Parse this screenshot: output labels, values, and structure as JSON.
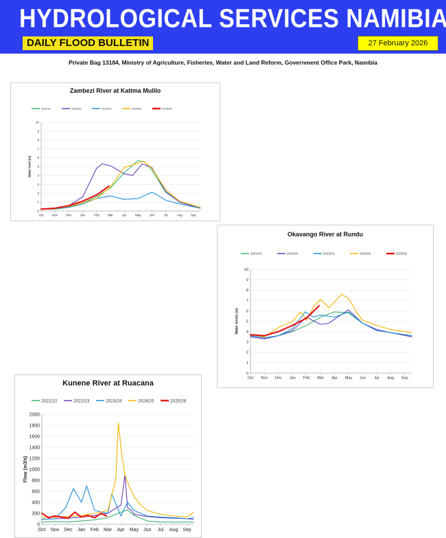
{
  "header": {
    "title": "HYDROLOGICAL SERVICES NAMIBIA",
    "subtitle": "DAILY FLOOD BULLETIN",
    "date": "27 February 2026",
    "address": "Private Bag 13184, Ministry of Agriculture, Fisheries, Water and Land Reform, Government Office Park, Namibia",
    "colors": {
      "banner": "#2c3ef0",
      "subtitle_bg": "#f6e21a",
      "date_bg": "#ffff00"
    }
  },
  "chart_data": [
    {
      "type": "line",
      "title": "Zambezi River at Katima Mulilo",
      "ylabel": "Water level (m)",
      "xlabel": "",
      "ylim": [
        0,
        10
      ],
      "yticks": [
        0,
        1,
        2,
        3,
        4,
        5,
        6,
        7,
        8,
        9,
        10
      ],
      "x_categories": [
        "Oct",
        "Nov",
        "Dec",
        "Jan",
        "Feb",
        "Mar",
        "Apr",
        "May",
        "Jun",
        "Jul",
        "Aug",
        "Sep"
      ],
      "grid": true,
      "legend_position": "top",
      "series": [
        {
          "name": "2021/22",
          "color": "#3cb371",
          "width": 1,
          "x": [
            0,
            1,
            2,
            3,
            4,
            5,
            6,
            7,
            7.5,
            8,
            9,
            10,
            11.5
          ],
          "y": [
            0.2,
            0.2,
            0.4,
            0.9,
            1.6,
            2.6,
            4.3,
            5.7,
            5.5,
            4.6,
            2.1,
            1.0,
            0.3
          ]
        },
        {
          "name": "2022/23",
          "color": "#6a3fb5",
          "width": 1,
          "x": [
            0,
            1,
            2,
            3,
            4,
            4.4,
            5,
            6,
            6.6,
            7.3,
            8,
            9,
            10,
            11.5
          ],
          "y": [
            0.2,
            0.3,
            0.6,
            1.6,
            4.8,
            5.3,
            5.1,
            4.2,
            4.0,
            5.3,
            4.9,
            2.2,
            1.0,
            0.3
          ]
        },
        {
          "name": "2023/24",
          "color": "#1f8dd6",
          "width": 1,
          "x": [
            0,
            1,
            2,
            3,
            4,
            5,
            6,
            7,
            8,
            8.4,
            9,
            10,
            11.5
          ],
          "y": [
            0.2,
            0.3,
            0.4,
            0.8,
            1.4,
            1.7,
            1.3,
            1.4,
            2.1,
            1.8,
            1.2,
            0.8,
            0.3
          ]
        },
        {
          "name": "2024/25",
          "color": "#f0b400",
          "width": 1,
          "x": [
            0,
            1,
            2,
            3,
            4,
            5,
            6,
            7,
            7.4,
            8,
            9,
            10,
            11.5
          ],
          "y": [
            0.2,
            0.3,
            0.5,
            0.9,
            1.4,
            2.7,
            4.9,
            5.4,
            5.6,
            4.8,
            2.4,
            1.1,
            0.4
          ]
        },
        {
          "name": "2025/26",
          "color": "#e41a1c",
          "width": 2,
          "x": [
            0,
            1,
            2,
            3,
            4,
            4.9
          ],
          "y": [
            0.2,
            0.3,
            0.6,
            1.1,
            1.8,
            2.8
          ]
        }
      ]
    },
    {
      "type": "line",
      "title": "Okavango River at Rundu",
      "ylabel": "Water levels (m)",
      "xlabel": "",
      "ylim": [
        0,
        10
      ],
      "yticks": [
        0,
        1,
        2,
        3,
        4,
        5,
        6,
        7,
        8,
        9,
        10
      ],
      "x_categories": [
        "Oct",
        "Nov",
        "Dec",
        "Jan",
        "Feb",
        "Mar",
        "Apr",
        "May",
        "Jun",
        "Jul",
        "Aug",
        "Sep"
      ],
      "grid": true,
      "legend_position": "top",
      "series": [
        {
          "name": "2021/22",
          "color": "#3cb371",
          "width": 1,
          "x": [
            0,
            1,
            2,
            3,
            4,
            5,
            6,
            7,
            8,
            9,
            10,
            11.5
          ],
          "y": [
            3.6,
            3.4,
            3.6,
            4.0,
            4.6,
            5.4,
            5.9,
            5.8,
            4.8,
            4.2,
            3.9,
            3.6
          ]
        },
        {
          "name": "2022/23",
          "color": "#6a3fb5",
          "width": 1,
          "x": [
            0,
            1,
            2,
            3,
            4,
            4.4,
            5,
            5.6,
            6,
            7,
            8,
            9,
            10,
            11.5
          ],
          "y": [
            3.5,
            3.3,
            3.6,
            4.1,
            5.4,
            5.1,
            4.7,
            4.8,
            5.2,
            6.1,
            4.8,
            4.2,
            3.9,
            3.5
          ]
        },
        {
          "name": "2023/24",
          "color": "#1f8dd6",
          "width": 1,
          "x": [
            0,
            1,
            2,
            3,
            3.9,
            4.5,
            5,
            6,
            7,
            8,
            9,
            10,
            11.5
          ],
          "y": [
            3.6,
            3.4,
            3.6,
            4.3,
            5.9,
            5.4,
            5.6,
            5.4,
            5.9,
            4.8,
            4.1,
            3.9,
            3.6
          ]
        },
        {
          "name": "2024/25",
          "color": "#f0b400",
          "width": 1,
          "x": [
            0,
            1,
            2,
            3,
            3.6,
            4,
            4.6,
            5,
            5.6,
            6.5,
            7,
            7.6,
            8,
            9,
            10,
            11.5
          ],
          "y": [
            3.7,
            3.5,
            4.4,
            5.0,
            5.9,
            5.1,
            6.6,
            7.1,
            6.3,
            7.6,
            7.2,
            5.8,
            5.1,
            4.6,
            4.2,
            3.9
          ]
        },
        {
          "name": "2025/26",
          "color": "#e41a1c",
          "width": 2,
          "x": [
            0,
            1,
            2,
            3,
            4,
            4.9
          ],
          "y": [
            3.7,
            3.6,
            4.0,
            4.6,
            5.3,
            6.5
          ]
        }
      ]
    },
    {
      "type": "line",
      "title": "Kunene River at Ruacana",
      "ylabel": "Flow (m3/s)",
      "xlabel": "",
      "ylim": [
        0,
        2000
      ],
      "yticks": [
        0,
        200,
        400,
        600,
        800,
        1000,
        1200,
        1400,
        1600,
        1800,
        2000
      ],
      "x_categories": [
        "Oct",
        "Nov",
        "Dec",
        "Jan",
        "Feb",
        "Mar",
        "Apr",
        "May",
        "Jun",
        "Jul",
        "Aug",
        "Sep"
      ],
      "grid": true,
      "legend_position": "top",
      "series": [
        {
          "name": "2021/22",
          "color": "#3cb371",
          "width": 1,
          "x": [
            0,
            1,
            2,
            3,
            4,
            5,
            6,
            6.5,
            7,
            8,
            9,
            10,
            11,
            11.5
          ],
          "y": [
            40,
            50,
            40,
            60,
            80,
            120,
            220,
            260,
            160,
            60,
            40,
            40,
            40,
            40
          ]
        },
        {
          "name": "2022/23",
          "color": "#6a3fb5",
          "width": 1,
          "x": [
            0,
            1,
            2,
            3,
            4,
            5,
            6,
            6.3,
            6.5,
            6.8,
            7,
            8,
            9,
            10,
            11,
            11.5
          ],
          "y": [
            90,
            100,
            110,
            130,
            160,
            200,
            350,
            900,
            300,
            250,
            180,
            140,
            120,
            110,
            100,
            90
          ]
        },
        {
          "name": "2023/24",
          "color": "#1f8dd6",
          "width": 1,
          "x": [
            0,
            1,
            1.8,
            2.4,
            3,
            3.4,
            4,
            5,
            5.3,
            6,
            6.5,
            7,
            8,
            9,
            10,
            11,
            11.5
          ],
          "y": [
            90,
            100,
            300,
            650,
            400,
            700,
            250,
            200,
            550,
            150,
            400,
            250,
            150,
            130,
            120,
            100,
            120
          ]
        },
        {
          "name": "2024/25",
          "color": "#f0b400",
          "width": 1,
          "x": [
            0,
            1,
            2,
            3,
            4,
            5,
            5.6,
            5.8,
            6,
            6.1,
            6.3,
            6.6,
            7,
            7.5,
            8,
            9,
            10,
            11,
            11.5
          ],
          "y": [
            120,
            130,
            140,
            160,
            200,
            250,
            800,
            1850,
            1400,
            1200,
            900,
            700,
            500,
            350,
            250,
            180,
            150,
            130,
            220
          ]
        },
        {
          "name": "2025/26",
          "color": "#e41a1c",
          "width": 2,
          "x": [
            0,
            0.5,
            1,
            2,
            2.5,
            3,
            3.5,
            4,
            4.5,
            4.9
          ],
          "y": [
            200,
            120,
            150,
            110,
            220,
            130,
            160,
            120,
            200,
            150
          ]
        }
      ]
    }
  ]
}
